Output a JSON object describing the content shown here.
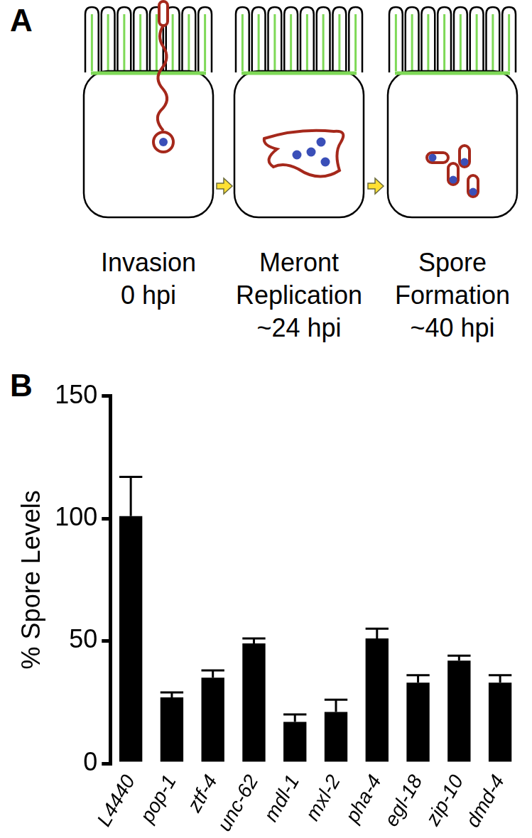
{
  "diagram": {
    "label": "A",
    "stages": [
      {
        "name": "Invasion",
        "time": "0 hpi"
      },
      {
        "name": "Meront Replication",
        "time": "~24 hpi"
      },
      {
        "name": "Spore Formation",
        "time": "~40 hpi"
      }
    ]
  },
  "chart_label": "B",
  "chart_data": {
    "type": "bar",
    "y_label": "% Spore Levels",
    "categories": [
      "L4440",
      "pop-1",
      "ztf-4",
      "unc-62",
      "mdl-1",
      "mxl-2",
      "pha-4",
      "egl-18",
      "zip-10",
      "dmd-4"
    ],
    "values": [
      101,
      27,
      35,
      49,
      17,
      21,
      51,
      33,
      42,
      33
    ],
    "errors": [
      16,
      2,
      3,
      2,
      3,
      5,
      4,
      3,
      2,
      3
    ],
    "color": "#000000",
    "ylim": [
      0,
      150
    ],
    "yticks": [
      0,
      50,
      100,
      150
    ],
    "grid": false
  }
}
